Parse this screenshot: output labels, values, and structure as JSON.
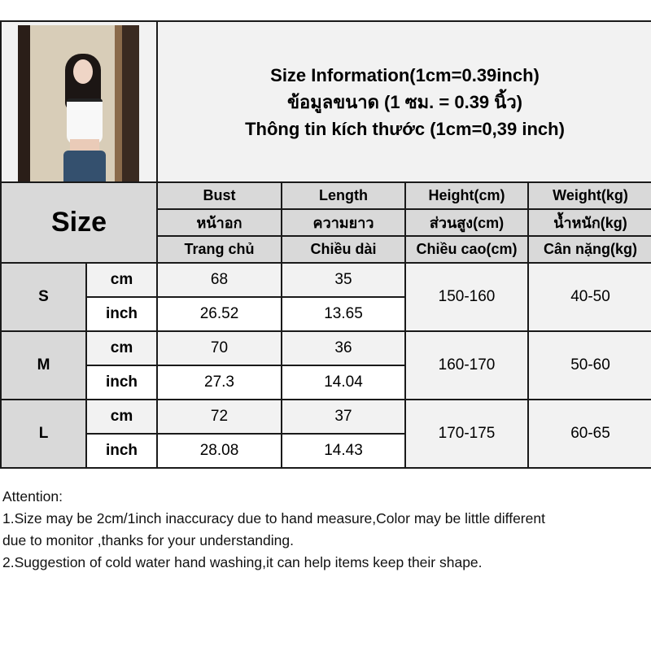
{
  "title": {
    "line1": "Size Information(1cm=0.39inch)",
    "line2": "ข้อมูลขนาด (1 ซม. = 0.39 นิ้ว)",
    "line3": "Thông tin kích thước (1cm=0,39 inch)"
  },
  "size_header": "Size",
  "columns": [
    {
      "en": "Bust",
      "th": "หน้าอก",
      "vi": "Trang chủ"
    },
    {
      "en": "Length",
      "th": "ความยาว",
      "vi": "Chiều dài"
    },
    {
      "en": "Height(cm)",
      "th": "ส่วนสูง(cm)",
      "vi": "Chiều cao(cm)"
    },
    {
      "en": "Weight(kg)",
      "th": "น้ำหนัก(kg)",
      "vi": "Cân nặng(kg)"
    }
  ],
  "sizes": [
    {
      "size": "S",
      "cm_label": "cm",
      "inch_label": "inch",
      "bust_cm": "68",
      "length_cm": "35",
      "bust_in": "26.52",
      "length_in": "13.65",
      "height": "150-160",
      "weight": "40-50"
    },
    {
      "size": "M",
      "cm_label": "cm",
      "inch_label": "inch",
      "bust_cm": "70",
      "length_cm": "36",
      "bust_in": "27.3",
      "length_in": "14.04",
      "height": "160-170",
      "weight": "50-60"
    },
    {
      "size": "L",
      "cm_label": "cm",
      "inch_label": "inch",
      "bust_cm": "72",
      "length_cm": "37",
      "bust_in": "28.08",
      "length_in": "14.43",
      "height": "170-175",
      "weight": "60-65"
    }
  ],
  "notes": {
    "heading": "Attention:",
    "line1": "1.Size may be 2cm/1inch inaccuracy due to hand measure,Color may be little different",
    "line1b": "due to monitor ,thanks for your understanding.",
    "line2": "2.Suggestion of cold water hand washing,it can help items keep their shape."
  },
  "colors": {
    "header_gray": "#d9d9d9",
    "row_gray": "#f2f2f2",
    "border": "#1a1a1a"
  }
}
